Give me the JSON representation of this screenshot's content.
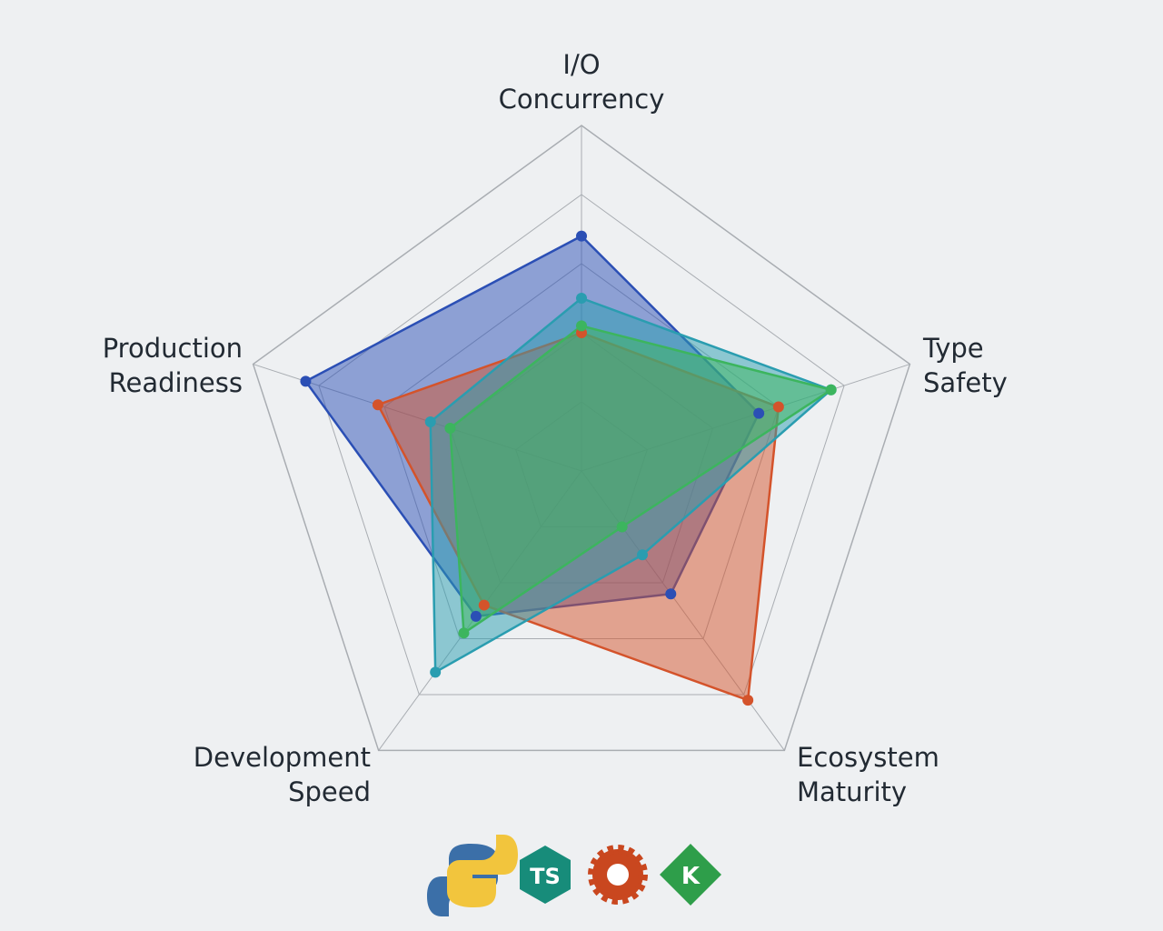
{
  "chart_data": {
    "type": "radar",
    "categories": [
      "I/O Concurrency",
      "Type Safety",
      "Ecosystem Maturity",
      "Development Speed",
      "Production Readiness"
    ],
    "ylim": [
      0,
      5
    ],
    "grid_levels": 5,
    "series": [
      {
        "color": "#2b4fb5",
        "values": [
          3.4,
          2.7,
          2.2,
          2.6,
          4.2
        ]
      },
      {
        "color": "#d4532b",
        "values": [
          2.0,
          3.0,
          4.1,
          2.4,
          3.1
        ]
      },
      {
        "color": "#2a9db0",
        "values": [
          2.5,
          3.8,
          1.5,
          3.6,
          2.3
        ]
      },
      {
        "color": "#3cb55e",
        "values": [
          2.1,
          3.8,
          1.0,
          2.9,
          2.0
        ]
      }
    ],
    "icon_texts": [
      "TS",
      "K"
    ]
  }
}
